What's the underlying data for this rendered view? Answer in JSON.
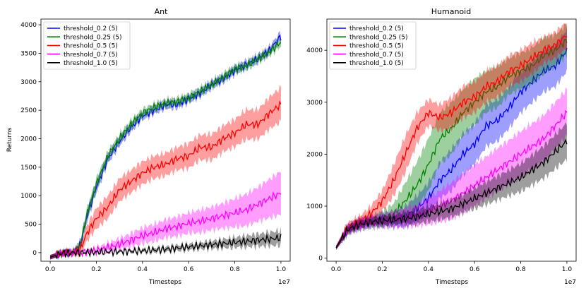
{
  "chart_data": [
    {
      "type": "line",
      "title": "Ant",
      "xlabel": "Timesteps",
      "ylabel": "Returns",
      "x_multiplier_label": "1e7",
      "xlim": [
        -0.04,
        1.04
      ],
      "ylim": [
        -150,
        4100
      ],
      "xticks": [
        0.0,
        0.2,
        0.4,
        0.6,
        0.8,
        1.0
      ],
      "xtick_labels": [
        "0.0",
        "0.2",
        "0.4",
        "0.6",
        "0.8",
        "1.0"
      ],
      "yticks": [
        0,
        500,
        1000,
        1500,
        2000,
        2500,
        3000,
        3500,
        4000
      ],
      "ytick_labels": [
        "0",
        "500",
        "1000",
        "1500",
        "2000",
        "2500",
        "3000",
        "3500",
        "4000"
      ],
      "legend_position": "top-left",
      "series": [
        {
          "name": "threshold_0.2 (5)",
          "color": "#0000ff",
          "x": [
            0,
            0.05,
            0.1,
            0.13,
            0.16,
            0.2,
            0.25,
            0.3,
            0.35,
            0.4,
            0.45,
            0.5,
            0.55,
            0.6,
            0.65,
            0.7,
            0.75,
            0.8,
            0.85,
            0.9,
            0.95,
            1.0
          ],
          "y": [
            -80,
            -10,
            0,
            120,
            650,
            1150,
            1650,
            1950,
            2200,
            2400,
            2500,
            2600,
            2600,
            2700,
            2800,
            2950,
            3050,
            3200,
            3300,
            3400,
            3550,
            3800
          ],
          "band": [
            40,
            40,
            40,
            80,
            100,
            100,
            80,
            80,
            80,
            70,
            70,
            70,
            70,
            70,
            70,
            70,
            70,
            70,
            70,
            70,
            70,
            80
          ]
        },
        {
          "name": "threshold_0.25 (5)",
          "color": "#008000",
          "x": [
            0,
            0.05,
            0.1,
            0.13,
            0.16,
            0.2,
            0.25,
            0.3,
            0.35,
            0.4,
            0.45,
            0.5,
            0.55,
            0.6,
            0.65,
            0.7,
            0.75,
            0.8,
            0.85,
            0.9,
            0.95,
            1.0
          ],
          "y": [
            -80,
            -10,
            0,
            130,
            680,
            1200,
            1700,
            2000,
            2250,
            2450,
            2550,
            2620,
            2650,
            2720,
            2830,
            2950,
            3080,
            3220,
            3280,
            3400,
            3520,
            3700
          ],
          "band": [
            40,
            40,
            40,
            80,
            100,
            100,
            80,
            80,
            80,
            70,
            70,
            70,
            70,
            70,
            70,
            70,
            70,
            70,
            70,
            70,
            70,
            80
          ]
        },
        {
          "name": "threshold_0.5 (5)",
          "color": "#ff0000",
          "x": [
            0,
            0.05,
            0.1,
            0.13,
            0.16,
            0.2,
            0.25,
            0.3,
            0.35,
            0.4,
            0.45,
            0.5,
            0.55,
            0.6,
            0.65,
            0.7,
            0.75,
            0.8,
            0.85,
            0.9,
            0.95,
            1.0
          ],
          "y": [
            -80,
            -10,
            0,
            50,
            350,
            600,
            800,
            1100,
            1250,
            1400,
            1500,
            1550,
            1650,
            1700,
            1850,
            1850,
            2000,
            2100,
            2250,
            2250,
            2450,
            2600
          ],
          "band": [
            40,
            40,
            40,
            80,
            140,
            180,
            200,
            200,
            200,
            200,
            200,
            200,
            200,
            220,
            220,
            230,
            230,
            240,
            260,
            260,
            280,
            300
          ]
        },
        {
          "name": "threshold_0.7 (5)",
          "color": "#ff00ff",
          "x": [
            0,
            0.05,
            0.1,
            0.15,
            0.2,
            0.25,
            0.3,
            0.35,
            0.4,
            0.45,
            0.5,
            0.55,
            0.6,
            0.65,
            0.7,
            0.75,
            0.8,
            0.85,
            0.9,
            0.95,
            1.0
          ],
          "y": [
            -80,
            -10,
            0,
            10,
            40,
            90,
            150,
            220,
            300,
            350,
            420,
            460,
            520,
            550,
            600,
            650,
            700,
            750,
            850,
            950,
            1050
          ],
          "band": [
            40,
            30,
            30,
            30,
            50,
            80,
            100,
            120,
            140,
            150,
            160,
            170,
            180,
            200,
            200,
            220,
            250,
            280,
            300,
            340,
            380
          ]
        },
        {
          "name": "threshold_1.0 (5)",
          "color": "#000000",
          "x": [
            0,
            0.05,
            0.1,
            0.15,
            0.2,
            0.25,
            0.3,
            0.35,
            0.4,
            0.45,
            0.5,
            0.55,
            0.6,
            0.65,
            0.7,
            0.75,
            0.8,
            0.85,
            0.9,
            0.95,
            1.0
          ],
          "y": [
            -80,
            -10,
            0,
            5,
            10,
            15,
            20,
            25,
            35,
            45,
            60,
            80,
            100,
            120,
            140,
            160,
            180,
            200,
            220,
            240,
            260
          ],
          "band": [
            40,
            30,
            20,
            20,
            20,
            20,
            25,
            30,
            35,
            40,
            45,
            50,
            55,
            60,
            70,
            80,
            90,
            100,
            110,
            120,
            130
          ]
        }
      ]
    },
    {
      "type": "line",
      "title": "Humanoid",
      "xlabel": "Timesteps",
      "ylabel": "",
      "x_multiplier_label": "1e7",
      "xlim": [
        -0.04,
        1.04
      ],
      "ylim": [
        -60,
        4600
      ],
      "xticks": [
        0.0,
        0.2,
        0.4,
        0.6,
        0.8,
        1.0
      ],
      "xtick_labels": [
        "0.0",
        "0.2",
        "0.4",
        "0.6",
        "0.8",
        "1.0"
      ],
      "yticks": [
        0,
        1000,
        2000,
        3000,
        4000
      ],
      "ytick_labels": [
        "0",
        "1000",
        "2000",
        "3000",
        "4000"
      ],
      "legend_position": "top-left",
      "series": [
        {
          "name": "threshold_0.2 (5)",
          "color": "#0000ff",
          "x": [
            0,
            0.05,
            0.1,
            0.15,
            0.2,
            0.25,
            0.3,
            0.35,
            0.4,
            0.45,
            0.5,
            0.55,
            0.6,
            0.65,
            0.7,
            0.75,
            0.8,
            0.85,
            0.9,
            0.95,
            1.0
          ],
          "y": [
            200,
            550,
            650,
            700,
            750,
            750,
            800,
            950,
            1150,
            1500,
            1700,
            2000,
            2200,
            2550,
            2650,
            2900,
            3200,
            3400,
            3600,
            3700,
            4000
          ],
          "band": [
            40,
            80,
            100,
            100,
            120,
            150,
            200,
            250,
            300,
            350,
            400,
            400,
            400,
            400,
            400,
            400,
            400,
            400,
            400,
            400,
            400
          ]
        },
        {
          "name": "threshold_0.25 (5)",
          "color": "#008000",
          "x": [
            0,
            0.05,
            0.1,
            0.15,
            0.2,
            0.25,
            0.3,
            0.35,
            0.4,
            0.45,
            0.5,
            0.55,
            0.6,
            0.65,
            0.7,
            0.75,
            0.8,
            0.85,
            0.9,
            0.95,
            1.0
          ],
          "y": [
            200,
            550,
            650,
            700,
            750,
            850,
            1100,
            1400,
            1800,
            2300,
            2500,
            2800,
            3000,
            3200,
            3300,
            3500,
            3600,
            3700,
            3900,
            4000,
            4200
          ],
          "band": [
            40,
            80,
            100,
            100,
            150,
            200,
            350,
            450,
            500,
            500,
            500,
            450,
            450,
            400,
            400,
            350,
            350,
            350,
            350,
            300,
            300
          ]
        },
        {
          "name": "threshold_0.5 (5)",
          "color": "#ff0000",
          "x": [
            0,
            0.05,
            0.1,
            0.15,
            0.2,
            0.25,
            0.3,
            0.35,
            0.4,
            0.45,
            0.5,
            0.55,
            0.6,
            0.65,
            0.7,
            0.75,
            0.8,
            0.85,
            0.9,
            0.95,
            1.0
          ],
          "y": [
            200,
            600,
            700,
            850,
            1100,
            1500,
            2000,
            2500,
            2800,
            2700,
            2800,
            3000,
            3100,
            3300,
            3400,
            3600,
            3700,
            3850,
            4000,
            4100,
            4300
          ],
          "band": [
            40,
            80,
            100,
            150,
            200,
            300,
            350,
            300,
            250,
            250,
            300,
            300,
            300,
            300,
            300,
            300,
            300,
            300,
            250,
            250,
            250
          ]
        },
        {
          "name": "threshold_0.7 (5)",
          "color": "#ff00ff",
          "x": [
            0,
            0.05,
            0.1,
            0.15,
            0.2,
            0.25,
            0.3,
            0.35,
            0.4,
            0.45,
            0.5,
            0.55,
            0.6,
            0.65,
            0.7,
            0.75,
            0.8,
            0.85,
            0.9,
            0.95,
            1.0
          ],
          "y": [
            200,
            550,
            650,
            700,
            720,
            750,
            780,
            820,
            900,
            1000,
            1100,
            1250,
            1400,
            1550,
            1700,
            1850,
            2000,
            2150,
            2300,
            2550,
            2800
          ],
          "band": [
            40,
            80,
            100,
            100,
            120,
            150,
            180,
            200,
            250,
            300,
            350,
            380,
            400,
            400,
            420,
            420,
            440,
            440,
            450,
            450,
            450
          ]
        },
        {
          "name": "threshold_1.0 (5)",
          "color": "#000000",
          "x": [
            0,
            0.05,
            0.1,
            0.15,
            0.2,
            0.25,
            0.3,
            0.35,
            0.4,
            0.45,
            0.5,
            0.55,
            0.6,
            0.65,
            0.7,
            0.75,
            0.8,
            0.85,
            0.9,
            0.95,
            1.0
          ],
          "y": [
            200,
            550,
            650,
            700,
            720,
            740,
            760,
            800,
            850,
            900,
            950,
            1050,
            1150,
            1250,
            1350,
            1450,
            1550,
            1700,
            1850,
            2050,
            2250
          ],
          "band": [
            40,
            80,
            80,
            80,
            100,
            100,
            120,
            140,
            150,
            160,
            170,
            180,
            200,
            220,
            230,
            250,
            270,
            290,
            310,
            330,
            350
          ]
        }
      ]
    }
  ]
}
